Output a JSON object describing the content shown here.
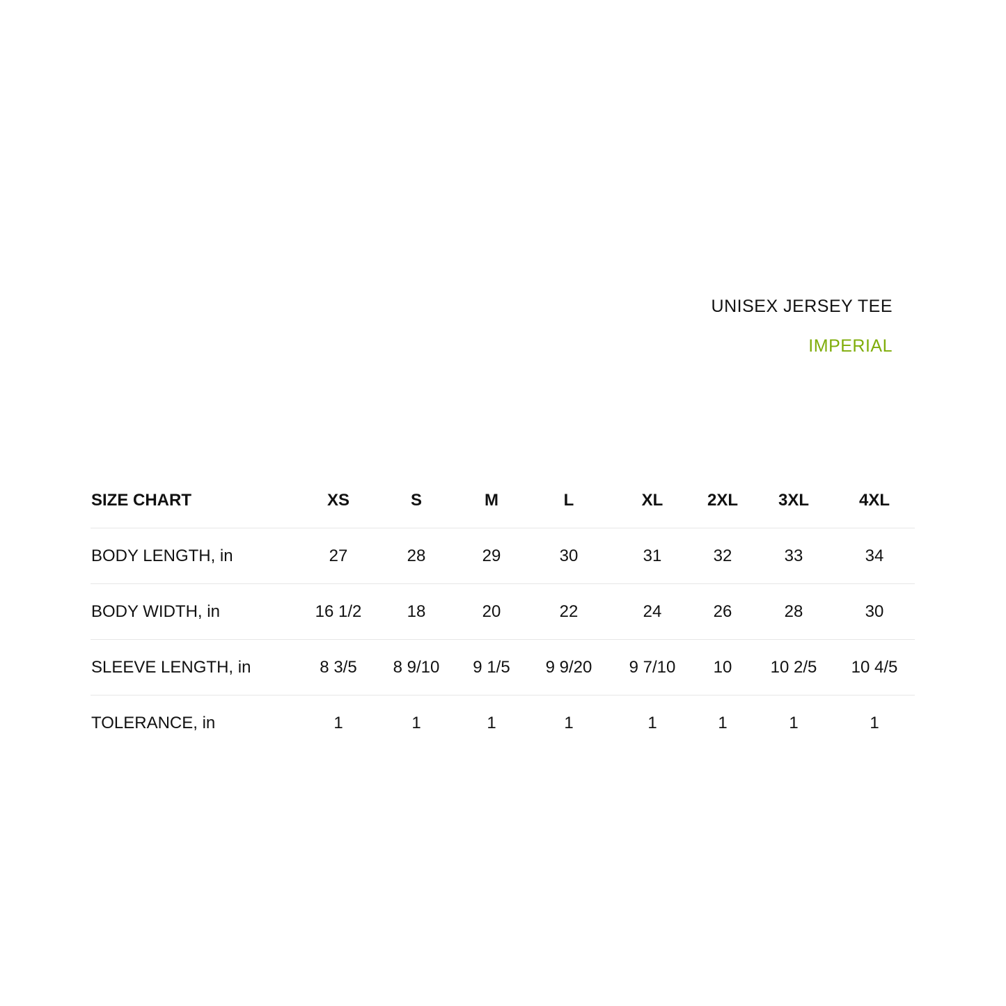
{
  "header": {
    "title": "UNISEX JERSEY TEE",
    "unit_system": "IMPERIAL",
    "accent_color": "#7fad0a"
  },
  "table": {
    "corner_label": "SIZE CHART",
    "sizes": [
      "XS",
      "S",
      "M",
      "L",
      "XL",
      "2XL",
      "3XL",
      "4XL"
    ],
    "rows": [
      {
        "label": "BODY LENGTH, in",
        "values": [
          "27",
          "28",
          "29",
          "30",
          "31",
          "32",
          "33",
          "34"
        ]
      },
      {
        "label": "BODY WIDTH, in",
        "values": [
          "16 1/2",
          "18",
          "20",
          "22",
          "24",
          "26",
          "28",
          "30"
        ]
      },
      {
        "label": "SLEEVE LENGTH, in",
        "values": [
          "8 3/5",
          "8 9/10",
          "9 1/5",
          "9 9/20",
          "9 7/10",
          "10",
          "10 2/5",
          "10 4/5"
        ]
      },
      {
        "label": "TOLERANCE, in",
        "values": [
          "1",
          "1",
          "1",
          "1",
          "1",
          "1",
          "1",
          "1"
        ]
      }
    ]
  }
}
